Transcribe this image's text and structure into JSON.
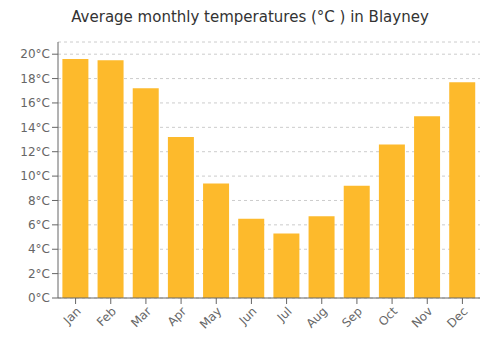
{
  "chart_data": {
    "type": "bar",
    "title": "Average monthly temperatures (°C ) in Blayney",
    "categories": [
      "Jan",
      "Feb",
      "Mar",
      "Apr",
      "May",
      "Jun",
      "Jul",
      "Aug",
      "Sep",
      "Oct",
      "Nov",
      "Dec"
    ],
    "values": [
      19.6,
      19.5,
      17.2,
      13.2,
      9.4,
      6.5,
      5.3,
      6.7,
      9.2,
      12.6,
      14.9,
      17.7
    ],
    "color": "#FDBA2C",
    "ylim": [
      0,
      21
    ],
    "yticks": [
      {
        "value": 0,
        "label": "0°C"
      },
      {
        "value": 2,
        "label": "2°C"
      },
      {
        "value": 4,
        "label": "4°C"
      },
      {
        "value": 6,
        "label": "6°C"
      },
      {
        "value": 8,
        "label": "8°C"
      },
      {
        "value": 10,
        "label": "10°C"
      },
      {
        "value": 12,
        "label": "12°C"
      },
      {
        "value": 14,
        "label": "14°C"
      },
      {
        "value": 16,
        "label": "16°C"
      },
      {
        "value": 18,
        "label": "18°C"
      },
      {
        "value": 20,
        "label": "20°C"
      }
    ],
    "grid": true
  }
}
